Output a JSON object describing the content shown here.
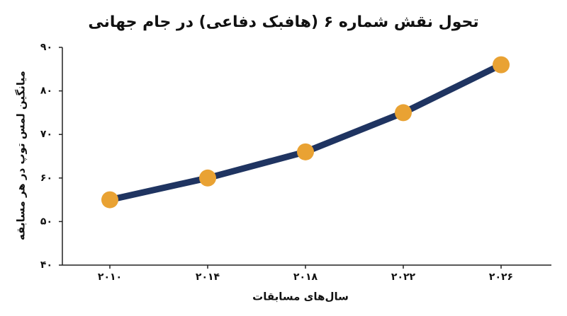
{
  "chart_data": {
    "type": "line",
    "title": "تحول نقش شماره ۶ (هافبک دفاعی) در جام جهانی",
    "x_label": "سال‌های مسابقات",
    "y_label": "میانگین لمس توپ در هر مسابقه",
    "categories": [
      "۲۰۱۰",
      "۲۰۱۴",
      "۲۰۱۸",
      "۲۰۲۲",
      "۲۰۲۶"
    ],
    "series": [
      {
        "color": "#1f3461",
        "marker_color": "#e9a233",
        "values": [
          55,
          60,
          66,
          75,
          86
        ]
      }
    ],
    "ylim": [
      40,
      90
    ],
    "yticks": [
      {
        "value": 40,
        "label": "۴۰"
      },
      {
        "value": 50,
        "label": "۵۰"
      },
      {
        "value": 60,
        "label": "۶۰"
      },
      {
        "value": 70,
        "label": "۷۰"
      },
      {
        "value": 80,
        "label": "۸۰"
      },
      {
        "value": 90,
        "label": "۹۰"
      }
    ],
    "grid": false
  }
}
